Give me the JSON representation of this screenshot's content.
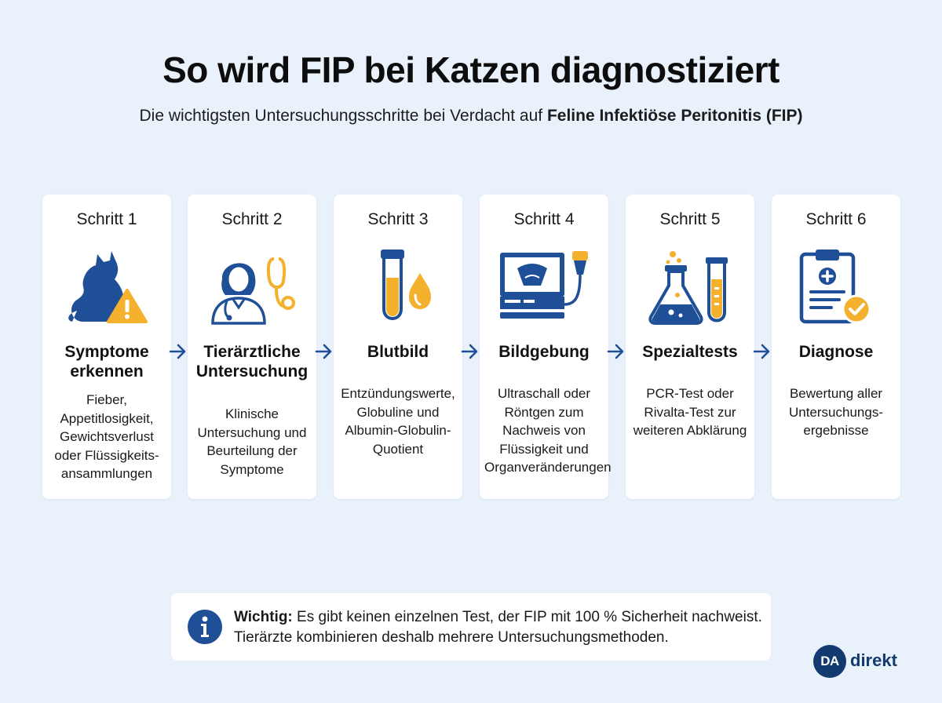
{
  "header": {
    "title": "So wird FIP bei Katzen diagnostiziert",
    "subtitle_prefix": "Die wichtigsten Untersuchungsschritte bei Verdacht auf",
    "subtitle_bold": "Feline Infektiöse Peritonitis (FIP)"
  },
  "steps": [
    {
      "label": "Schritt 1",
      "title": "Symptome erkennen",
      "desc": "Fieber, Appetitlosigkeit, Gewichtsverlust oder Flüssigkeits-ansammlungen",
      "icon": "cat-warning-icon"
    },
    {
      "label": "Schritt 2",
      "title": "Tierärztliche Untersuchung",
      "desc": "Klinische Untersuchung und Beurteilung der Symptome",
      "icon": "veterinarian-stethoscope-icon"
    },
    {
      "label": "Schritt 3",
      "title": "Blutbild",
      "desc": "Entzündungswerte, Globuline und Albumin-Globulin-Quotient",
      "icon": "blood-test-tube-icon"
    },
    {
      "label": "Schritt 4",
      "title": "Bildgebung",
      "desc": "Ultraschall oder Röntgen zum Nachweis von Flüssigkeit und Organveränderungen",
      "icon": "ultrasound-monitor-icon"
    },
    {
      "label": "Schritt 5",
      "title": "Spezialtests",
      "desc": "PCR-Test oder Rivalta-Test zur weiteren Abklärung",
      "icon": "lab-flask-icon"
    },
    {
      "label": "Schritt 6",
      "title": "Diagnose",
      "desc": "Bewertung aller Untersuchungs-ergebnisse",
      "icon": "clipboard-check-icon"
    }
  ],
  "note": {
    "bold": "Wichtig:",
    "text": "Es gibt keinen einzelnen Test, der FIP mit 100 % Sicherheit nachweist. Tierärzte kombinieren deshalb mehrere Untersuchungsmethoden."
  },
  "logo": {
    "badge": "DA",
    "text": "direkt"
  },
  "colors": {
    "background": "#e9f1fb",
    "navy": "#1f4f96",
    "amber": "#f3b12e",
    "dark": "#123a6e"
  }
}
